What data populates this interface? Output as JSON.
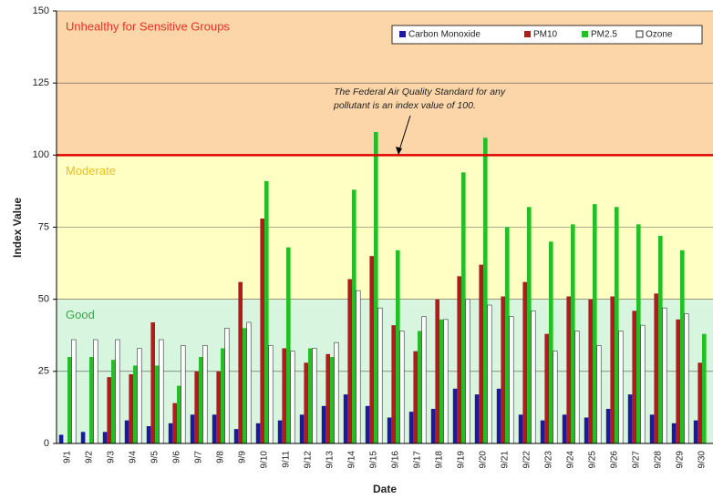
{
  "chart_data": {
    "type": "bar",
    "x_label": "Date",
    "y_label": "Index Value",
    "annotation": [
      "The Federal Air Quality Standard for any",
      "pollutant is an index value of 100."
    ],
    "categories": [
      "9/1",
      "9/2",
      "9/3",
      "9/4",
      "9/5",
      "9/6",
      "9/7",
      "9/8",
      "9/9",
      "9/10",
      "9/11",
      "9/12",
      "9/13",
      "9/14",
      "9/15",
      "9/16",
      "9/17",
      "9/18",
      "9/19",
      "9/20",
      "9/21",
      "9/22",
      "9/23",
      "9/24",
      "9/25",
      "9/26",
      "9/27",
      "9/28",
      "9/29",
      "9/30"
    ],
    "series": [
      {
        "name": "Carbon Monoxide",
        "color": "#1a1aa0",
        "values": [
          3,
          4,
          4,
          8,
          6,
          7,
          10,
          10,
          5,
          7,
          8,
          10,
          13,
          17,
          13,
          9,
          11,
          12,
          19,
          17,
          19,
          10,
          8,
          10,
          9,
          12,
          17,
          10,
          7,
          8
        ]
      },
      {
        "name": "PM10",
        "color": "#b01c1c",
        "values": [
          null,
          null,
          23,
          24,
          42,
          14,
          25,
          25,
          56,
          78,
          33,
          28,
          31,
          57,
          65,
          41,
          32,
          50,
          58,
          62,
          51,
          56,
          38,
          51,
          50,
          51,
          46,
          52,
          43,
          28
        ]
      },
      {
        "name": "PM2.5",
        "color": "#22c022",
        "values": [
          30,
          30,
          29,
          27,
          27,
          20,
          30,
          33,
          40,
          91,
          68,
          33,
          30,
          88,
          108,
          67,
          39,
          43,
          94,
          106,
          75,
          82,
          70,
          76,
          83,
          82,
          76,
          72,
          67,
          38
        ]
      },
      {
        "name": "Ozone",
        "color": "#ffffff",
        "values": [
          36,
          36,
          36,
          33,
          36,
          34,
          34,
          40,
          42,
          34,
          32,
          33,
          35,
          53,
          47,
          39,
          44,
          43,
          50,
          48,
          44,
          46,
          32,
          39,
          34,
          39,
          41,
          47,
          45,
          null
        ]
      }
    ],
    "zones": [
      {
        "label": "Good",
        "from": 0,
        "to": 50,
        "color": "#d8f5e0",
        "label_color": "#3aa845"
      },
      {
        "label": "Moderate",
        "from": 50,
        "to": 100,
        "color": "#ffffc4",
        "label_color": "#e8c020"
      },
      {
        "label": "Unhealthy for Sensitive Groups",
        "from": 100,
        "to": 150,
        "color": "#fcd6a8",
        "label_color": "#e83028"
      }
    ],
    "reference_line": {
      "value": 100,
      "color": "#e00000"
    },
    "ylim": [
      0,
      150
    ],
    "yticks": [
      0,
      25,
      50,
      75,
      100,
      125,
      150
    ],
    "grid": true,
    "legend": "top-right"
  }
}
